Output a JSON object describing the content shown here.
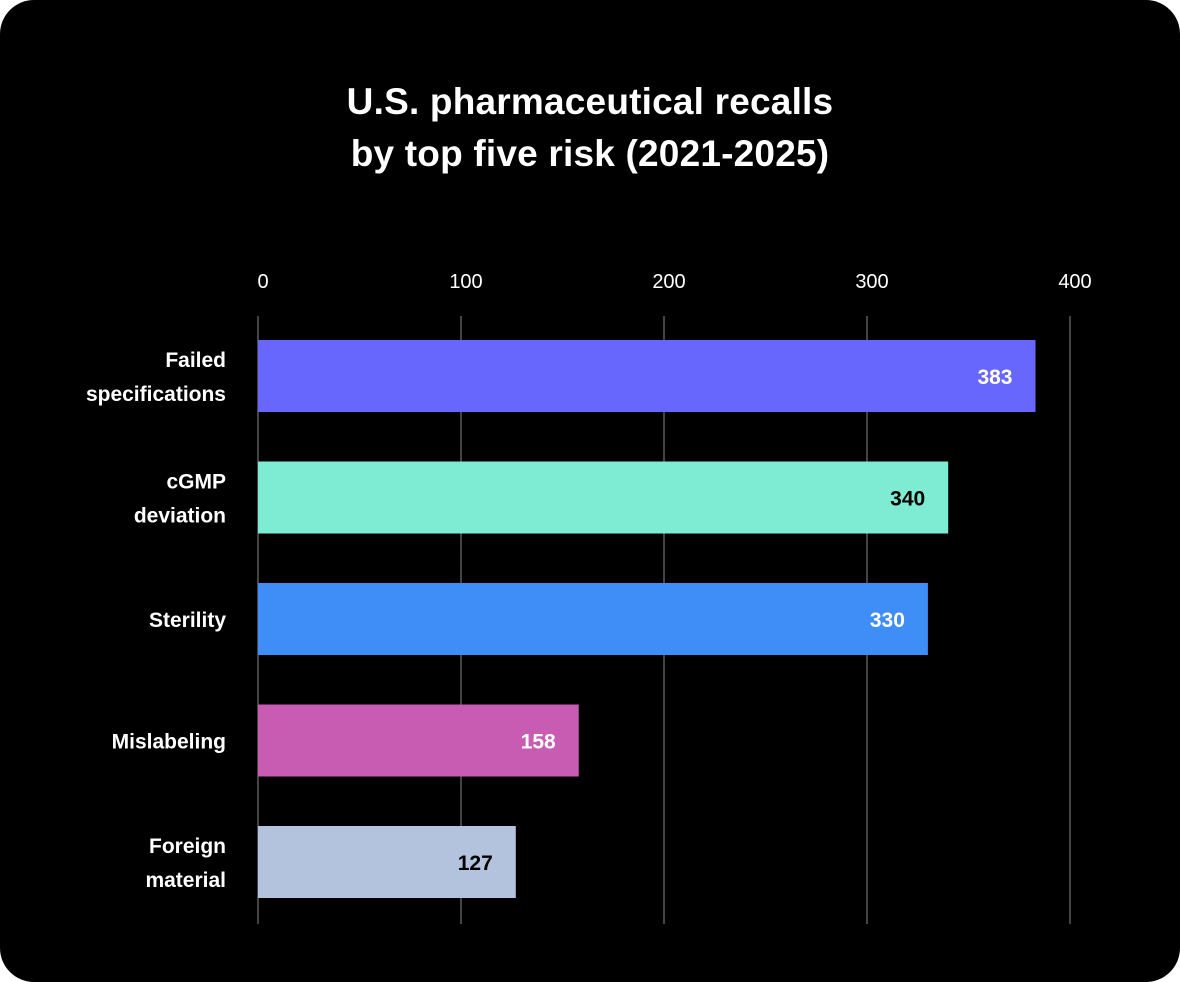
{
  "chart_data": {
    "type": "bar",
    "orientation": "horizontal",
    "title": [
      "U.S. pharmaceutical recalls",
      "by top five risk (2021-2025)"
    ],
    "categories": [
      [
        "Failed",
        "specifications"
      ],
      [
        "cGMP",
        "deviation"
      ],
      [
        "Sterility"
      ],
      [
        "Mislabeling"
      ],
      [
        "Foreign",
        "material"
      ]
    ],
    "values": [
      383,
      340,
      330,
      158,
      127
    ],
    "value_labels": [
      "383",
      "340",
      "330",
      "158",
      "127"
    ],
    "bar_colors": [
      "#6767fd",
      "#7eecd3",
      "#3f8df7",
      "#c85bb2",
      "#b3c3de"
    ],
    "label_colors": [
      "#ffffff",
      "#000000",
      "#ffffff",
      "#ffffff",
      "#000000"
    ],
    "xlim": [
      0,
      400
    ],
    "xticks": [
      0,
      100,
      200,
      300,
      400
    ],
    "xtick_labels": [
      "0",
      "100",
      "200",
      "300",
      "400"
    ],
    "xaxis_position": "top",
    "grid": true,
    "legend": "none",
    "background": "#000000"
  }
}
